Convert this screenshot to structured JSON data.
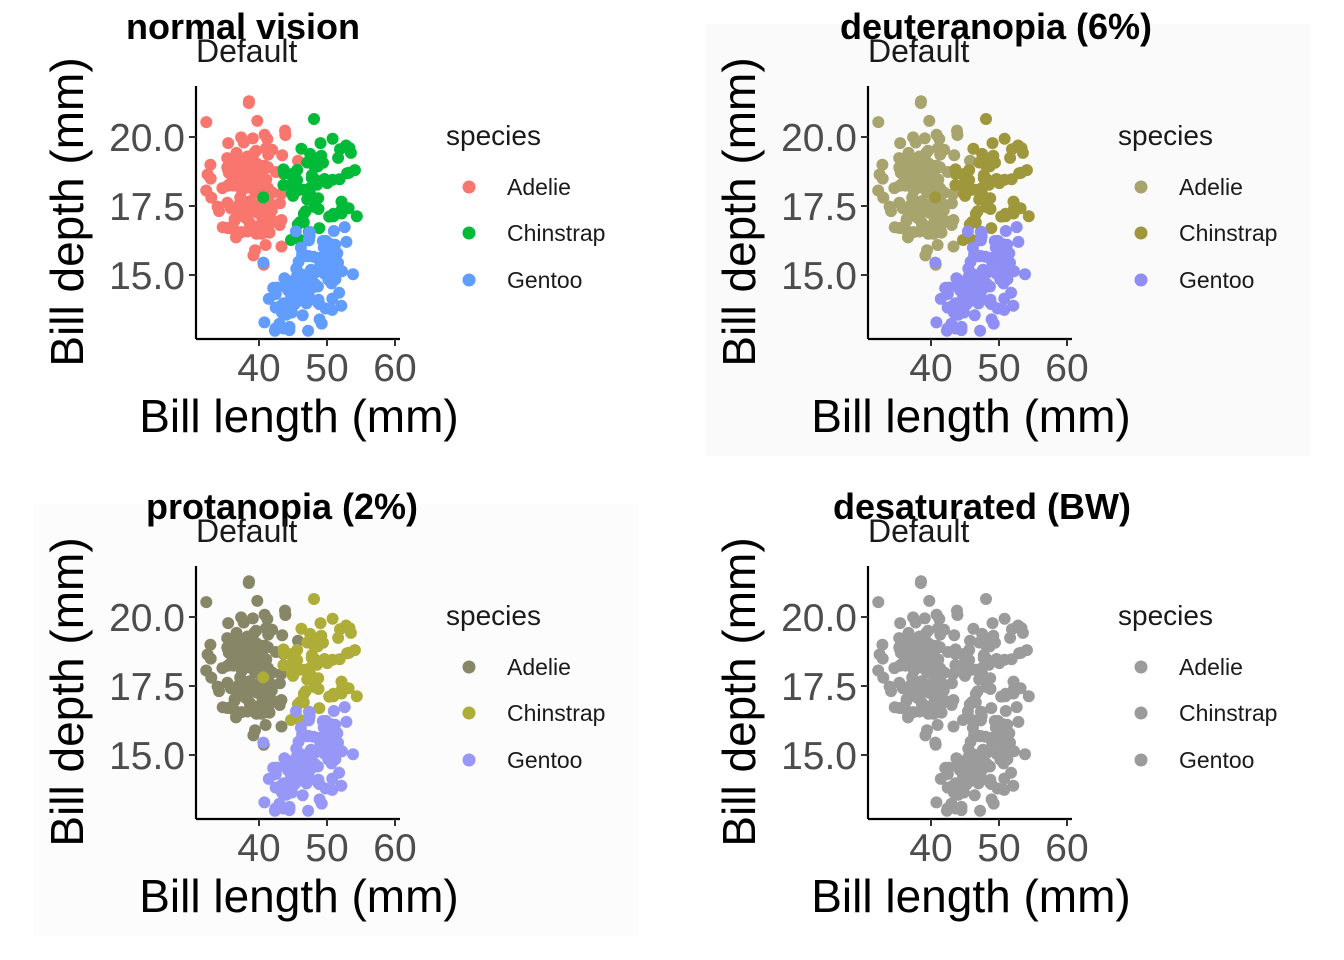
{
  "chart_data": [
    {
      "type": "scatter",
      "title": "normal vision",
      "subtitle": "Default",
      "background": "#ffffff",
      "xlabel": "Bill length (mm)",
      "ylabel": "Bill depth (mm)",
      "x_ticks": [
        "40",
        "50",
        "60"
      ],
      "y_ticks": [
        "15.0",
        "17.5",
        "20.0"
      ],
      "xlim": [
        31,
        61
      ],
      "ylim": [
        12.8,
        22
      ],
      "legend_title": "species",
      "legend_position": "right",
      "series": [
        {
          "name": "Adelie",
          "color": "#F8766D"
        },
        {
          "name": "Chinstrap",
          "color": "#00BA38"
        },
        {
          "name": "Gentoo",
          "color": "#619CFF"
        }
      ]
    },
    {
      "type": "scatter",
      "title": "deuteranopia (6%)",
      "subtitle": "Default",
      "background": "#fafafa",
      "xlabel": "Bill length (mm)",
      "ylabel": "Bill depth (mm)",
      "x_ticks": [
        "40",
        "50",
        "60"
      ],
      "y_ticks": [
        "15.0",
        "17.5",
        "20.0"
      ],
      "xlim": [
        31,
        61
      ],
      "ylim": [
        12.8,
        22
      ],
      "legend_title": "species",
      "legend_position": "right",
      "series": [
        {
          "name": "Adelie",
          "color": "#A8A46E"
        },
        {
          "name": "Chinstrap",
          "color": "#9E973C"
        },
        {
          "name": "Gentoo",
          "color": "#8E8EF5"
        }
      ]
    },
    {
      "type": "scatter",
      "title": "protanopia (2%)",
      "subtitle": "Default",
      "background": "#fcfcfc",
      "xlabel": "Bill length (mm)",
      "ylabel": "Bill depth (mm)",
      "x_ticks": [
        "40",
        "50",
        "60"
      ],
      "y_ticks": [
        "15.0",
        "17.5",
        "20.0"
      ],
      "xlim": [
        31,
        61
      ],
      "ylim": [
        12.8,
        22
      ],
      "legend_title": "species",
      "legend_position": "right",
      "series": [
        {
          "name": "Adelie",
          "color": "#878767"
        },
        {
          "name": "Chinstrap",
          "color": "#AEAD38"
        },
        {
          "name": "Gentoo",
          "color": "#9797F7"
        }
      ]
    },
    {
      "type": "scatter",
      "title": "desaturated (BW)",
      "subtitle": "Default",
      "background": "#ffffff",
      "xlabel": "Bill length (mm)",
      "ylabel": "Bill depth (mm)",
      "x_ticks": [
        "40",
        "50",
        "60"
      ],
      "y_ticks": [
        "15.0",
        "17.5",
        "20.0"
      ],
      "xlim": [
        31,
        61
      ],
      "ylim": [
        12.8,
        22
      ],
      "legend_title": "species",
      "legend_position": "right",
      "series": [
        {
          "name": "Adelie",
          "color": "#9B9B9B"
        },
        {
          "name": "Chinstrap",
          "color": "#9B9B9B"
        },
        {
          "name": "Gentoo",
          "color": "#9B9B9B"
        }
      ]
    }
  ]
}
